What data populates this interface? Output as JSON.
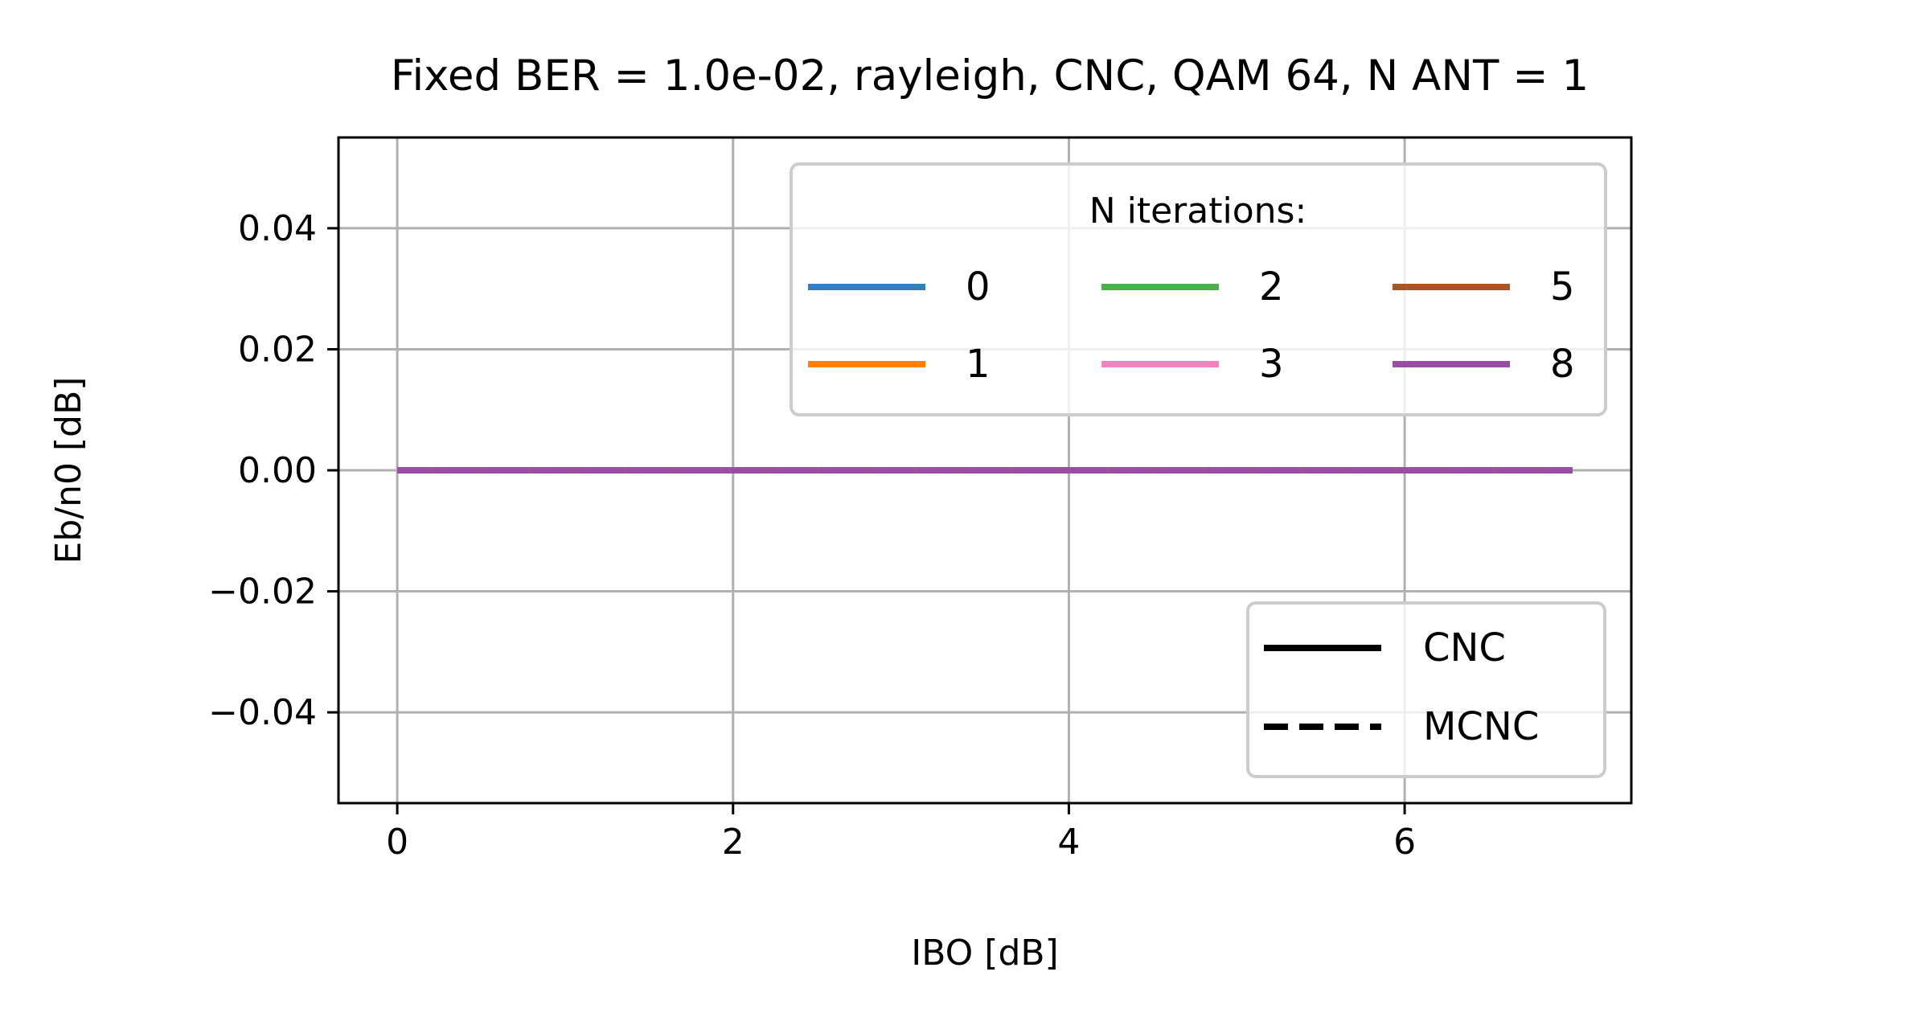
{
  "chart_data": {
    "type": "line",
    "title": "Fixed BER = 1.0e-02, rayleigh, CNC, QAM 64, N ANT = 1",
    "xlabel": "IBO [dB]",
    "ylabel": "Eb/n0 [dB]",
    "xlim": [
      -0.35,
      7.35
    ],
    "ylim": [
      -0.055,
      0.055
    ],
    "xticks": [
      0,
      2,
      4,
      6
    ],
    "yticks": [
      -0.04,
      -0.02,
      0.0,
      0.02,
      0.04
    ],
    "xtick_labels": [
      "0",
      "2",
      "4",
      "6"
    ],
    "ytick_labels": [
      "−0.04",
      "−0.02",
      "0.00",
      "0.02",
      "0.04"
    ],
    "grid": true,
    "x": [
      0,
      1,
      2,
      3,
      4,
      5,
      6,
      7
    ],
    "series": [
      {
        "name": "0",
        "color": "#377eb8",
        "style": "solid",
        "values": [
          0,
          0,
          0,
          0,
          0,
          0,
          0,
          0
        ]
      },
      {
        "name": "1",
        "color": "#ff7f00",
        "style": "solid",
        "values": [
          0,
          0,
          0,
          0,
          0,
          0,
          0,
          0
        ]
      },
      {
        "name": "2",
        "color": "#4daf4a",
        "style": "solid",
        "values": [
          0,
          0,
          0,
          0,
          0,
          0,
          0,
          0
        ]
      },
      {
        "name": "3",
        "color": "#f781bf",
        "style": "solid",
        "values": [
          0,
          0,
          0,
          0,
          0,
          0,
          0,
          0
        ]
      },
      {
        "name": "5",
        "color": "#a65628",
        "style": "solid",
        "values": [
          0,
          0,
          0,
          0,
          0,
          0,
          0,
          0
        ]
      },
      {
        "name": "8",
        "color": "#984ea3",
        "style": "solid",
        "values": [
          0,
          0,
          0,
          0,
          0,
          0,
          0,
          0
        ]
      },
      {
        "name": "0",
        "color": "#377eb8",
        "style": "dashed",
        "values": [
          0,
          0,
          0,
          0,
          0,
          0,
          0,
          0
        ]
      },
      {
        "name": "1",
        "color": "#ff7f00",
        "style": "dashed",
        "values": [
          0,
          0,
          0,
          0,
          0,
          0,
          0,
          0
        ]
      },
      {
        "name": "2",
        "color": "#4daf4a",
        "style": "dashed",
        "values": [
          0,
          0,
          0,
          0,
          0,
          0,
          0,
          0
        ]
      },
      {
        "name": "3",
        "color": "#f781bf",
        "style": "dashed",
        "values": [
          0,
          0,
          0,
          0,
          0,
          0,
          0,
          0
        ]
      },
      {
        "name": "5",
        "color": "#a65628",
        "style": "dashed",
        "values": [
          0,
          0,
          0,
          0,
          0,
          0,
          0,
          0
        ]
      },
      {
        "name": "8",
        "color": "#984ea3",
        "style": "dashed",
        "values": [
          0,
          0,
          0,
          0,
          0,
          0,
          0,
          0
        ]
      }
    ],
    "legend_iterations": {
      "title": "N iterations:",
      "placement": "top-right",
      "entries": [
        {
          "label": "0",
          "color": "#377eb8"
        },
        {
          "label": "1",
          "color": "#ff7f00"
        },
        {
          "label": "2",
          "color": "#4daf4a"
        },
        {
          "label": "3",
          "color": "#f781bf"
        },
        {
          "label": "5",
          "color": "#a65628"
        },
        {
          "label": "8",
          "color": "#984ea3"
        }
      ]
    },
    "legend_method": {
      "placement": "lower-right",
      "entries": [
        {
          "label": "CNC",
          "style": "solid"
        },
        {
          "label": "MCNC",
          "style": "dashed"
        }
      ]
    }
  }
}
